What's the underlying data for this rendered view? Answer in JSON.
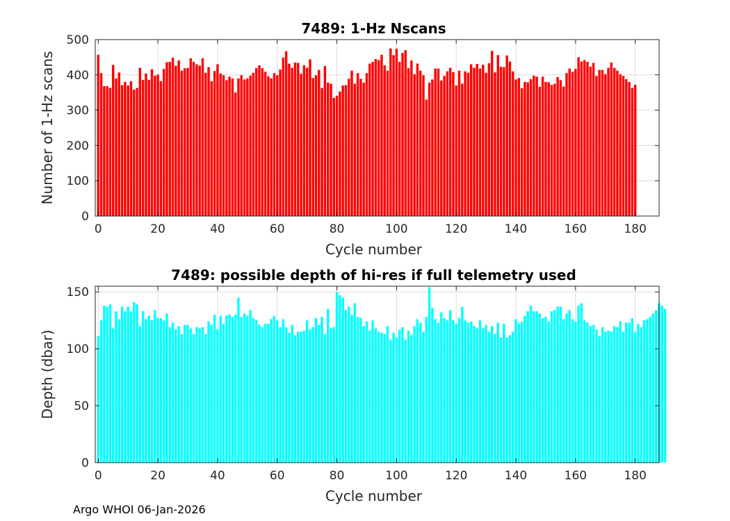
{
  "footer": "Argo WHOI 06-Jan-2026",
  "chart_data": [
    {
      "type": "bar",
      "title": "7489: 1-Hz Nscans",
      "xlabel": "Cycle number",
      "ylabel": "Number of 1-Hz scans",
      "color": "#ff0000",
      "xlim": [
        -1,
        188
      ],
      "ylim": [
        0,
        500
      ],
      "xticks": [
        0,
        20,
        40,
        60,
        80,
        100,
        120,
        140,
        160,
        180
      ],
      "yticks": [
        0,
        100,
        200,
        300,
        400,
        500
      ],
      "grid": true,
      "x_start": 0,
      "values": [
        457,
        405,
        368,
        368,
        363,
        428,
        390,
        407,
        371,
        380,
        370,
        382,
        358,
        363,
        420,
        386,
        404,
        386,
        416,
        398,
        401,
        382,
        417,
        436,
        437,
        449,
        426,
        441,
        412,
        419,
        420,
        447,
        437,
        430,
        426,
        447,
        406,
        422,
        382,
        411,
        430,
        404,
        399,
        385,
        395,
        390,
        350,
        390,
        399,
        387,
        390,
        398,
        406,
        419,
        427,
        419,
        409,
        396,
        390,
        405,
        399,
        415,
        449,
        467,
        432,
        420,
        435,
        434,
        403,
        427,
        420,
        444,
        391,
        399,
        414,
        363,
        425,
        378,
        375,
        335,
        341,
        353,
        370,
        371,
        389,
        412,
        375,
        405,
        389,
        378,
        405,
        432,
        437,
        445,
        442,
        457,
        427,
        412,
        475,
        456,
        474,
        437,
        462,
        470,
        419,
        441,
        402,
        432,
        412,
        399,
        330,
        378,
        387,
        418,
        418,
        384,
        397,
        410,
        420,
        408,
        370,
        412,
        375,
        410,
        406,
        430,
        420,
        431,
        418,
        429,
        406,
        433,
        468,
        407,
        456,
        423,
        422,
        455,
        438,
        410,
        387,
        391,
        362,
        380,
        379,
        388,
        398,
        395,
        366,
        395,
        380,
        379,
        372,
        375,
        394,
        385,
        367,
        405,
        418,
        409,
        417,
        450,
        438,
        442,
        437,
        423,
        434,
        397,
        414,
        414,
        402,
        420,
        435,
        420,
        412,
        402,
        397,
        388,
        380,
        363,
        372
      ]
    },
    {
      "type": "bar",
      "title": "7489: possible depth of hi-res if full telemetry used",
      "xlabel": "Cycle number",
      "ylabel": "Depth (dbar)",
      "color": "#00ffff",
      "xlim": [
        -1,
        188
      ],
      "ylim": [
        0,
        155
      ],
      "xticks": [
        0,
        20,
        40,
        60,
        80,
        100,
        120,
        140,
        160,
        180
      ],
      "yticks": [
        0,
        50,
        100,
        150
      ],
      "grid": true,
      "x_start": 0,
      "values": [
        111,
        125,
        138,
        137,
        139,
        118,
        133,
        126,
        137,
        133,
        137,
        133,
        141,
        139,
        120,
        133,
        126,
        129,
        125,
        134,
        127,
        127,
        125,
        131,
        119,
        123,
        117,
        120,
        113,
        121,
        121,
        118,
        113,
        119,
        118,
        119,
        113,
        124,
        121,
        130,
        117,
        129,
        122,
        129,
        130,
        128,
        130,
        145,
        128,
        131,
        129,
        134,
        127,
        125,
        121,
        119,
        122,
        122,
        126,
        129,
        125,
        119,
        126,
        119,
        114,
        121,
        112,
        115,
        115,
        116,
        125,
        117,
        119,
        127,
        121,
        128,
        113,
        135,
        118,
        119,
        150,
        147,
        145,
        134,
        137,
        130,
        140,
        128,
        127,
        120,
        124,
        116,
        125,
        118,
        115,
        114,
        113,
        120,
        108,
        114,
        110,
        117,
        119,
        108,
        116,
        112,
        120,
        126,
        123,
        115,
        128,
        154,
        136,
        126,
        123,
        132,
        127,
        125,
        134,
        125,
        122,
        127,
        137,
        125,
        123,
        124,
        120,
        118,
        125,
        118,
        121,
        115,
        120,
        113,
        123,
        110,
        122,
        110,
        112,
        115,
        126,
        122,
        124,
        129,
        133,
        138,
        133,
        133,
        131,
        127,
        128,
        124,
        133,
        134,
        137,
        137,
        126,
        131,
        134,
        126,
        124,
        138,
        140,
        125,
        123,
        120,
        121,
        117,
        111,
        119,
        115,
        116,
        115,
        120,
        119,
        124,
        115,
        123,
        123,
        127,
        115,
        122,
        119,
        125,
        126,
        128,
        131,
        134,
        140,
        138,
        135
      ]
    }
  ]
}
